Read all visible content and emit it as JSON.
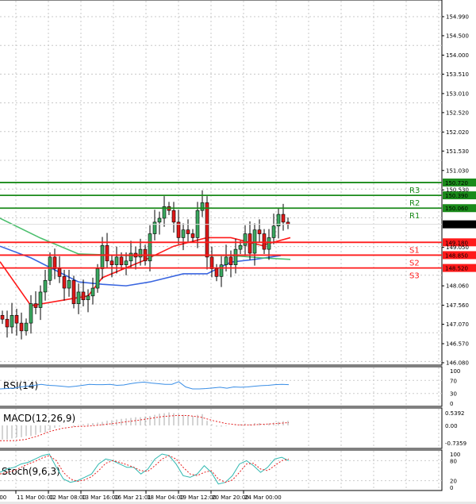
{
  "chart_data": {
    "type": "candlestick",
    "symbol_price_axis": {
      "ticks": [
        "154.990",
        "154.500",
        "154.000",
        "153.510",
        "153.010",
        "152.520",
        "152.020",
        "151.530",
        "151.030",
        "150.530",
        "149.050",
        "148.060",
        "147.560",
        "147.070",
        "146.570",
        "146.080"
      ],
      "ylim": [
        146.08,
        154.99
      ]
    },
    "current_price": "149.643",
    "levels": [
      {
        "name": "R3",
        "value": "150.720",
        "color": "#1a8a1a"
      },
      {
        "name": "R2",
        "value": "150.390",
        "color": "#1a8a1a"
      },
      {
        "name": "R1",
        "value": "150.060",
        "color": "#1a8a1a"
      },
      {
        "name": "S1",
        "value": "149.180",
        "color": "#ff1a1a"
      },
      {
        "name": "S2",
        "value": "148.850",
        "color": "#ff1a1a"
      },
      {
        "name": "S3",
        "value": "148.520",
        "color": "#ff1a1a"
      }
    ],
    "closes": [
      147.2,
      147.0,
      147.3,
      147.1,
      146.9,
      147.1,
      147.6,
      147.5,
      147.9,
      148.2,
      148.8,
      148.5,
      148.3,
      148.0,
      148.2,
      147.6,
      147.9,
      147.7,
      147.8,
      148.0,
      148.5,
      149.1,
      148.7,
      148.6,
      148.8,
      148.6,
      148.7,
      148.9,
      148.8,
      149.0,
      148.7,
      149.4,
      149.7,
      149.8,
      150.1,
      150.0,
      149.7,
      149.3,
      149.5,
      149.4,
      149.3,
      150.0,
      150.2,
      148.8,
      148.5,
      148.3,
      148.6,
      148.8,
      148.6,
      149.0,
      149.1,
      149.4,
      148.9,
      149.5,
      149.4,
      149.0,
      149.3,
      149.6,
      149.9,
      149.7,
      149.64
    ],
    "moving_averages": [
      {
        "name": "fast",
        "color": "#ff1a1a",
        "points": [
          [
            -0.5,
            148.68
          ],
          [
            6,
            147.55
          ],
          [
            18,
            147.8
          ],
          [
            21,
            148.27
          ],
          [
            29.5,
            148.7
          ],
          [
            36,
            149.08
          ],
          [
            43,
            149.3
          ],
          [
            48,
            149.3
          ],
          [
            54.5,
            149.1
          ],
          [
            60.5,
            149.3
          ]
        ]
      },
      {
        "name": "mid",
        "color": "#3a66e0",
        "points": [
          [
            -0.5,
            149.08
          ],
          [
            6,
            148.78
          ],
          [
            16,
            148.16
          ],
          [
            21,
            148.1
          ],
          [
            26,
            148.06
          ],
          [
            31,
            148.16
          ],
          [
            38,
            148.37
          ],
          [
            43,
            148.37
          ],
          [
            48,
            148.67
          ],
          [
            53,
            148.74
          ],
          [
            58.5,
            148.84
          ]
        ]
      },
      {
        "name": "slow",
        "color": "#4cbf6e",
        "points": [
          [
            -0.5,
            149.8
          ],
          [
            8,
            149.29
          ],
          [
            16,
            148.88
          ],
          [
            26,
            148.84
          ],
          [
            36,
            148.84
          ],
          [
            48,
            148.84
          ],
          [
            54.5,
            148.78
          ],
          [
            60.5,
            148.74
          ]
        ]
      }
    ],
    "rsi": {
      "label": "RSI(14)",
      "ticks": [
        "100",
        "70",
        "30",
        "0"
      ],
      "values": [
        44,
        45,
        46,
        50,
        52,
        55,
        58,
        55,
        54,
        52,
        50,
        52,
        55,
        58,
        57,
        57,
        58,
        55,
        56,
        60,
        63,
        65,
        62,
        60,
        58,
        58,
        66,
        50,
        44,
        44,
        45,
        47,
        49,
        46,
        50,
        49,
        50,
        52,
        54,
        55,
        57,
        58,
        57
      ]
    },
    "macd": {
      "label": "MACD(12,26,9)",
      "ticks": [
        "0.5392",
        "0.00",
        "-0.7359"
      ],
      "histogram": [
        -0.6,
        -0.6,
        -0.55,
        -0.5,
        -0.5,
        -0.45,
        -0.45,
        -0.4,
        -0.3,
        -0.3,
        -0.2,
        -0.1,
        -0.05,
        0.0,
        0.0,
        -0.05,
        0.02,
        0.05,
        0.08,
        0.1,
        0.12,
        0.15,
        0.2,
        0.22,
        0.25,
        0.28,
        0.3,
        0.32,
        0.35,
        0.35,
        0.38,
        0.4,
        0.45,
        0.5,
        0.52,
        0.55,
        0.52,
        0.48,
        0.45,
        0.42,
        0.4,
        0.45,
        0.48,
        0.2,
        0.05,
        -0.05,
        -0.05,
        -0.02,
        0.0,
        0.05,
        0.05,
        0.08,
        0.05,
        0.1,
        0.1,
        0.05,
        0.08,
        0.12,
        0.15,
        0.18,
        0.2
      ],
      "signal": [
        -0.65,
        -0.65,
        -0.6,
        -0.45,
        -0.25,
        -0.12,
        -0.05,
        -0.03,
        0.02,
        0.08,
        0.15,
        0.22,
        0.3,
        0.38,
        0.42,
        0.42,
        0.35,
        0.2,
        0.08,
        0.02,
        0.02,
        0.05,
        0.08,
        0.12
      ]
    },
    "stoch": {
      "label": "Stoch(9,6,3)",
      "ticks": [
        "100",
        "80",
        "20",
        "0"
      ],
      "k": [
        45,
        55,
        60,
        70,
        75,
        85,
        95,
        100,
        60,
        25,
        15,
        20,
        30,
        40,
        70,
        85,
        80,
        70,
        60,
        60,
        40,
        55,
        85,
        100,
        95,
        70,
        35,
        30,
        40,
        65,
        45,
        10,
        15,
        35,
        70,
        80,
        65,
        45,
        60,
        85,
        90,
        80
      ],
      "d": [
        40,
        45,
        50,
        60,
        70,
        78,
        88,
        95,
        80,
        45,
        25,
        18,
        22,
        32,
        50,
        72,
        80,
        75,
        68,
        60,
        50,
        48,
        65,
        85,
        95,
        85,
        60,
        40,
        35,
        45,
        50,
        25,
        15,
        22,
        45,
        70,
        72,
        55,
        50,
        65,
        80,
        85
      ]
    },
    "time_axis": [
      ":00",
      "11 Mar 00:00",
      "12 Mar 08:00",
      "13 Mar 16:00",
      "16 Mar 21:01",
      "18 Mar 04:00",
      "19 Mar 12:00",
      "20 Mar 20:00",
      "24 Mar 00:00"
    ]
  }
}
